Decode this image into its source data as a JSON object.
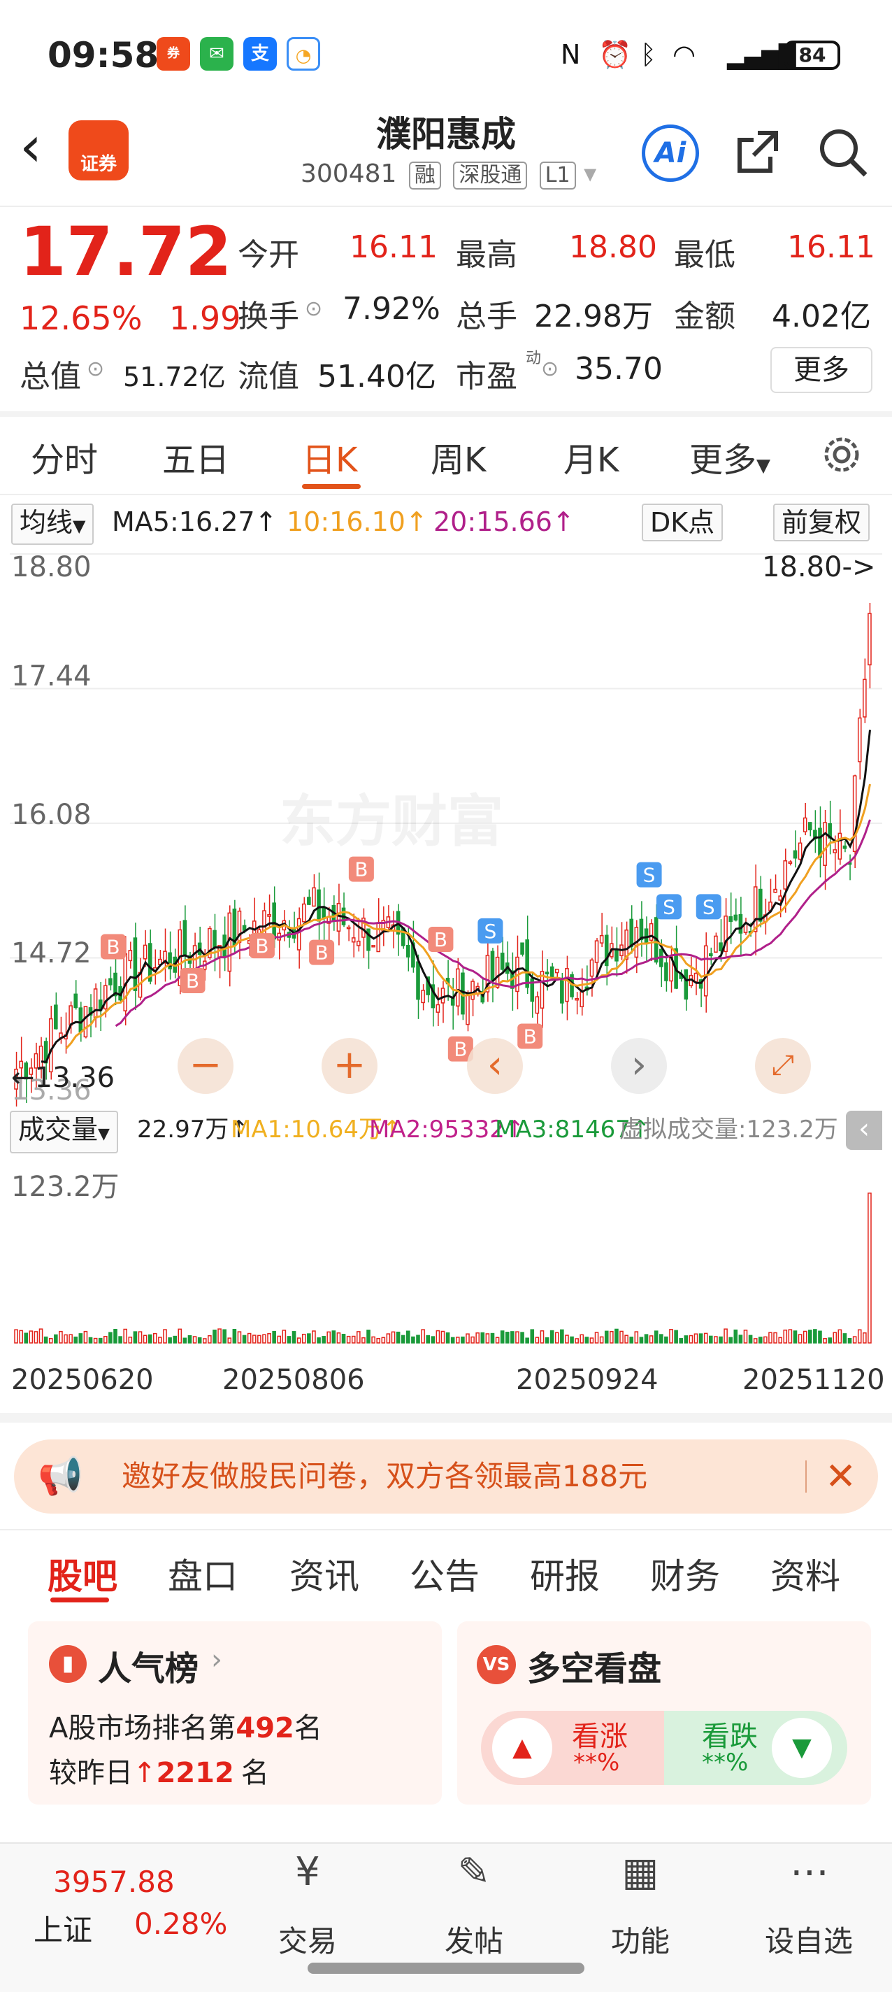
{
  "status_bar": {
    "time": "09:58",
    "battery": "84",
    "app_icons": [
      "securities-icon",
      "wechat-icon",
      "alipay-icon",
      "clock-app-icon"
    ]
  },
  "header": {
    "title": "濮阳惠成",
    "code": "300481",
    "tags": [
      "融",
      "深股通",
      "L1"
    ],
    "logo_text": "证券",
    "ai_label": "Ai"
  },
  "quote": {
    "price": "17.72",
    "change_pct": "12.65%",
    "change_abs": "1.99",
    "open_label": "今开",
    "open": "16.11",
    "high_label": "最高",
    "high": "18.80",
    "low_label": "最低",
    "low": "16.11",
    "turnover_label": "换手",
    "turnover": "7.92%",
    "volume_label": "总手",
    "volume": "22.98万",
    "amount_label": "金额",
    "amount": "4.02亿",
    "mcap_label": "总值",
    "mcap": "51.72亿",
    "float_label": "流值",
    "float_val": "51.40亿",
    "pe_label": "市盈",
    "pe_sup": "动",
    "pe": "35.70",
    "more_label": "更多"
  },
  "k_tabs": [
    "分时",
    "五日",
    "日K",
    "周K",
    "月K",
    "更多"
  ],
  "k_active": "日K",
  "indicators": {
    "ma_select": "均线",
    "ma5": "MA5:16.27↑",
    "ma10": "10:16.10↑",
    "ma20": "20:15.66↑",
    "dk": "DK点",
    "fq": "前复权"
  },
  "chart_labels": {
    "y1": "18.80",
    "y2": "17.44",
    "y3": "16.08",
    "y4": "14.72",
    "y5": "13.36",
    "high_marker": "18.80->",
    "low_marker": "←13.36",
    "watermark": "东方财富"
  },
  "volume": {
    "select": "成交量",
    "vol": "22.97万↑",
    "ma1": "MA1:10.64万↑",
    "ma2": "MA2:95332↑",
    "ma3": "MA3:81467↑",
    "virtual": "虚拟成交量:123.2万",
    "ymax": "123.2万"
  },
  "dates": [
    "20250620",
    "20250806",
    "20250924",
    "20251120"
  ],
  "banner": {
    "text": "邀好友做股民问卷，双方各领最高188元"
  },
  "lower_tabs": [
    "股吧",
    "盘口",
    "资讯",
    "公告",
    "研报",
    "财务",
    "资料"
  ],
  "popularity": {
    "title": "人气榜",
    "line1_prefix": "A股市场排名第",
    "rank": "492",
    "line1_suffix": "名",
    "line2_prefix": "较昨日",
    "delta": "2212",
    "line2_suffix": "名"
  },
  "vs": {
    "title": "多空看盘",
    "up_label": "看涨",
    "up_val": "**%",
    "down_label": "看跌",
    "down_val": "**%"
  },
  "bottom_nav": {
    "index_value": "3957.88",
    "index_name": "上证",
    "index_pct": "0.28%",
    "items": [
      "交易",
      "发帖",
      "功能",
      "设自选"
    ]
  },
  "colors": {
    "up": "#e2231a",
    "down": "#1a9a3a",
    "ma5": "#111111",
    "ma10": "#f0a020",
    "ma20": "#b0208a",
    "accent": "#e2531a"
  }
}
